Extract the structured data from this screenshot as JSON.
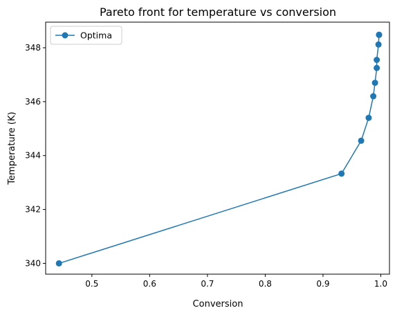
{
  "chart_data": {
    "type": "line",
    "title": "Pareto front for temperature vs conversion",
    "xlabel": "Conversion",
    "ylabel": "Temperature (K)",
    "xlim": [
      0.42,
      1.015
    ],
    "ylim": [
      339.6,
      348.95
    ],
    "x_ticks": [
      0.5,
      0.6,
      0.7,
      0.8,
      0.9,
      1.0
    ],
    "x_tick_labels": [
      "0.5",
      "0.6",
      "0.7",
      "0.8",
      "0.9",
      "1.0"
    ],
    "y_ticks": [
      340,
      342,
      344,
      346,
      348
    ],
    "y_tick_labels": [
      "340",
      "342",
      "344",
      "346",
      "348"
    ],
    "grid": false,
    "legend": {
      "placement": "top-left",
      "entries": [
        "Optima"
      ]
    },
    "series": [
      {
        "name": "Optima",
        "color": "#1f77b4",
        "marker": "circle",
        "points": [
          [
            0.443,
            340.0
          ],
          [
            0.932,
            343.33
          ],
          [
            0.966,
            344.55
          ],
          [
            0.979,
            345.4
          ],
          [
            0.987,
            346.2
          ],
          [
            0.99,
            346.7
          ],
          [
            0.993,
            347.25
          ],
          [
            0.993,
            347.55
          ],
          [
            0.996,
            348.12
          ],
          [
            0.997,
            348.48
          ],
          [
            0.997,
            348.48
          ]
        ]
      }
    ]
  }
}
